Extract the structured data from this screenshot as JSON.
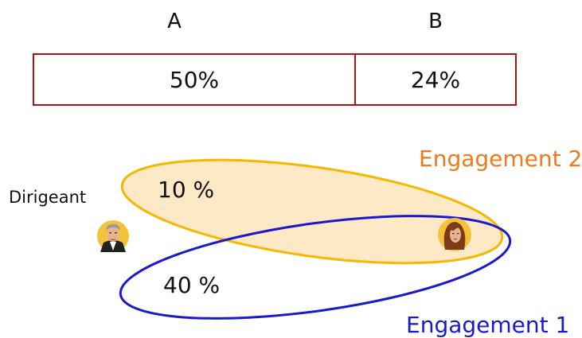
{
  "table": {
    "columns": [
      {
        "header": "A",
        "value": "50%"
      },
      {
        "header": "B",
        "value": "24%"
      }
    ],
    "border_color": "#b01212"
  },
  "diagram": {
    "person_left_label": "Dirigeant",
    "engagement_1": {
      "label": "Engagement 1",
      "percent": "40 %",
      "color": "#1a1acc"
    },
    "engagement_2": {
      "label": "Engagement 2",
      "percent": "10 %",
      "color": "#f5b800",
      "label_color": "#f07a1a",
      "fill": "#fde9c6"
    },
    "icons": [
      "man-avatar-icon",
      "woman-avatar-icon"
    ]
  }
}
